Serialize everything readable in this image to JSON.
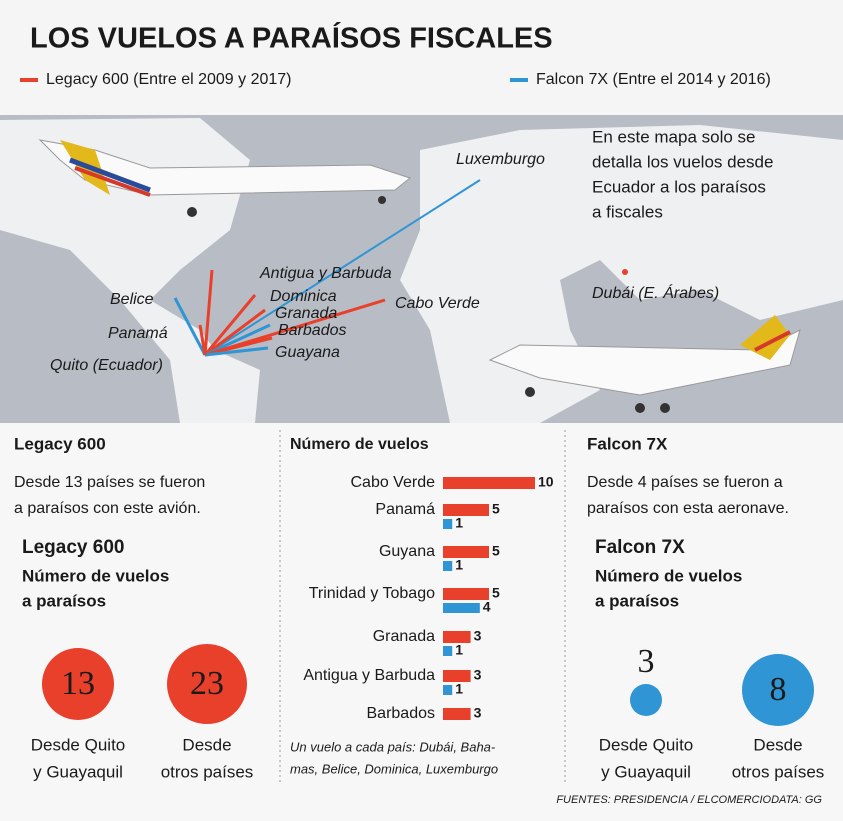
{
  "header": {
    "title": "LOS VUELOS A PARAÍSOS FISCALES"
  },
  "map": {
    "note": [
      "En este mapa solo se",
      "detalla los vuelos desde",
      "Ecuador a los paraísos",
      "a fiscales"
    ],
    "labels": [
      "Luxemburgo",
      "Antigua y Barbuda",
      "Dominica",
      "Granada",
      "Barbados",
      "Guayana",
      "Cabo Verde",
      "Belice",
      "Panamá",
      "Quito (Ecuador)",
      "Dubái (E. Árabes)"
    ]
  },
  "left_panel": {
    "title": "Legacy 600",
    "text": [
      "Desde 13 países se fueron",
      "a paraísos con este avión."
    ],
    "subtitle": "Legacy 600",
    "caption": [
      "Número de vuelos",
      "a paraísos"
    ],
    "stats": [
      {
        "value": "13",
        "label": [
          "Desde Quito",
          "y Guayaquil"
        ]
      },
      {
        "value": "23",
        "label": [
          "Desde",
          "otros países"
        ]
      }
    ]
  },
  "right_panel": {
    "title": "Falcon 7X",
    "text": [
      "Desde 4 países se fueron a",
      "paraísos con esta aeronave."
    ],
    "subtitle": "Falcon 7X",
    "caption": [
      "Número de vuelos",
      "a paraísos"
    ],
    "stats": [
      {
        "value": "3",
        "label": [
          "Desde Quito",
          "y Guayaquil"
        ]
      },
      {
        "value": "8",
        "label": [
          "Desde",
          "otros países"
        ]
      }
    ]
  },
  "chart_data": {
    "type": "hbar",
    "title": "Número de vuelos",
    "categories": [
      "Cabo Verde",
      "Panamá",
      "Guyana",
      "Trinidad y Tobago",
      "Granada",
      "Antigua y Barbuda",
      "Barbados"
    ],
    "series": [
      {
        "name": "Legacy 600 (Entre el 2009 y 2017)",
        "color": "#e8402a",
        "values": [
          10,
          5,
          5,
          5,
          3,
          3,
          3
        ]
      },
      {
        "name": "Falcon 7X (Entre el 2014 y 2016)",
        "color": "#2f95d4",
        "values": [
          null,
          1,
          1,
          4,
          1,
          1,
          null
        ]
      }
    ],
    "note": [
      "Un vuelo a cada país: Dubái, Baha-",
      "mas, Belice, Dominica, Luxemburgo"
    ]
  },
  "footer": "FUENTES: PRESIDENCIA / ELCOMERCIODATA: GG"
}
